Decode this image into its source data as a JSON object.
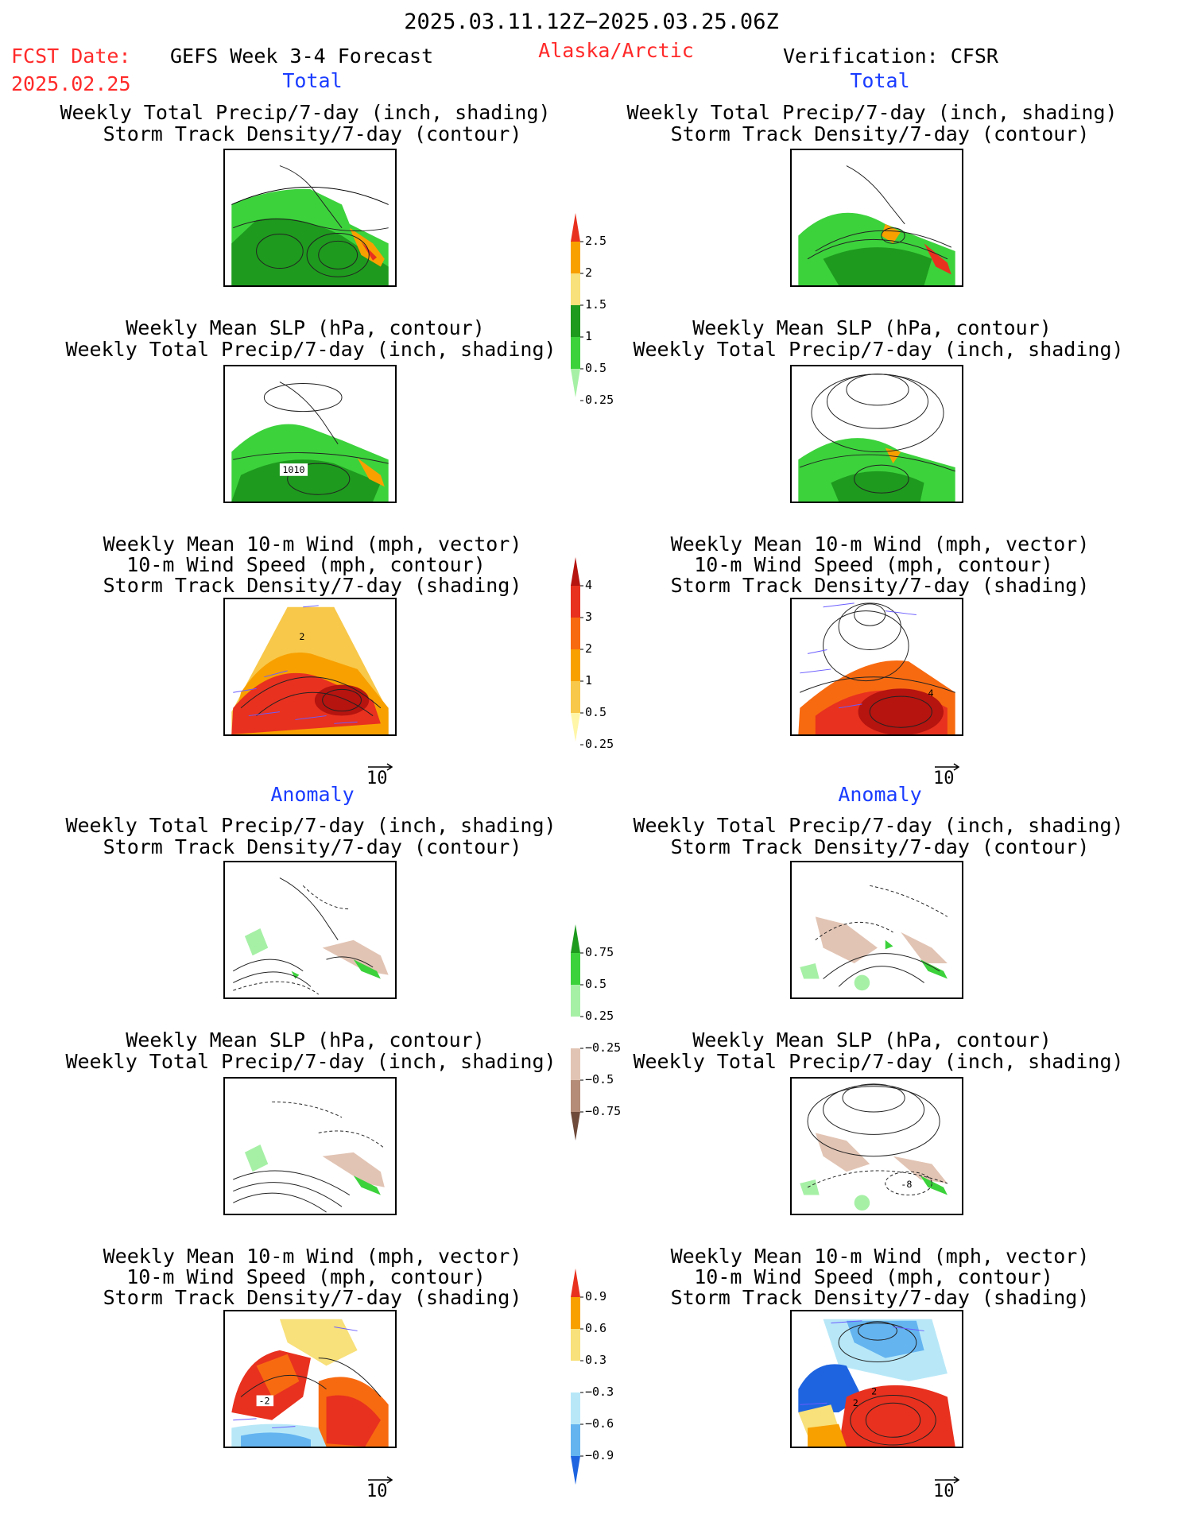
{
  "header": {
    "date_range": "2025.03.11.12Z−2025.03.25.06Z",
    "fcst_label": "FCST Date:",
    "fcst_date": "2025.02.25",
    "forecast_title": "GEFS Week 3-4 Forecast",
    "region": "Alaska/Arctic",
    "verification": "Verification: CFSR"
  },
  "sections": {
    "total": "Total",
    "anomaly": "Anomaly"
  },
  "titles": {
    "precip_storm": [
      "Weekly Total Precip/7-day (inch, shading)",
      "Storm Track Density/7-day (contour)"
    ],
    "slp_precip": [
      "Weekly Mean SLP (hPa, contour)",
      "Weekly Total Precip/7-day (inch, shading)"
    ],
    "wind_storm": [
      "Weekly Mean 10-m Wind (mph, vector)",
      "10-m Wind Speed (mph, contour)",
      "Storm Track Density/7-day (shading)"
    ]
  },
  "vector_ref": "10",
  "panel_labels": {
    "slp_total_left": "1010",
    "wind_total_left": "2",
    "wind_total_right": "4",
    "slp_anom_right": "-8",
    "wind_anom_left": "-2",
    "wind_anom_right_a": "2",
    "wind_anom_right_b": "2"
  },
  "colorbars": [
    {
      "name": "precip-total",
      "labels": [
        "2.5",
        "2",
        "1.5",
        "1",
        "0.5",
        "0.25"
      ],
      "colors": [
        "#e8311f",
        "#f8a000",
        "#f8e07a",
        "#1e9a1e",
        "#3cd23c",
        "#a6f0a6"
      ]
    },
    {
      "name": "storm-total",
      "labels": [
        "4",
        "3",
        "2",
        "1",
        "0.5",
        "0.25"
      ],
      "colors": [
        "#b5140f",
        "#e8311f",
        "#f86a10",
        "#f8a000",
        "#f8c84a",
        "#fff6a8"
      ]
    },
    {
      "name": "precip-anom",
      "labels": [
        "0.75",
        "0.5",
        "0.25",
        "−0.25",
        "−0.5",
        "−0.75"
      ],
      "colors": [
        "#1e9a1e",
        "#3cd23c",
        "#a6f0a6",
        "#ffffff",
        "#e2c4b4",
        "#b48c78",
        "#6e4a3a"
      ]
    },
    {
      "name": "storm-anom",
      "labels": [
        "0.9",
        "0.6",
        "0.3",
        "−0.3",
        "−0.6",
        "−0.9"
      ],
      "colors": [
        "#e8311f",
        "#f8a000",
        "#f8e07a",
        "#ffffff",
        "#b8e8f8",
        "#64b4f0",
        "#1e64e0"
      ]
    }
  ],
  "colors": {
    "red_text": "#ff2a2a",
    "blue_text": "#1a3cff"
  }
}
